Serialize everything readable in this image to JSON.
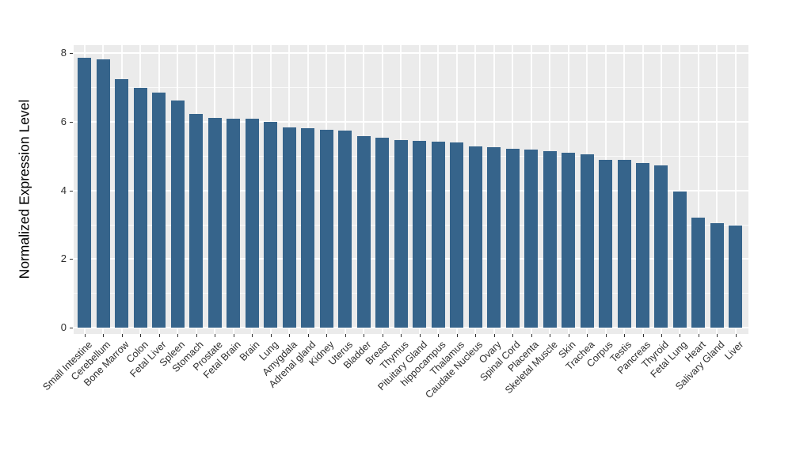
{
  "chart_data": {
    "type": "bar",
    "title": "",
    "xlabel": "",
    "ylabel": "Normalized Expression Level",
    "categories": [
      "Small Intestine",
      "Cerebellum",
      "Bone Marrow",
      "Colon",
      "Fetal Liver",
      "Spleen",
      "Stomach",
      "Prostate",
      "Fetal Brain",
      "Brain",
      "Lung",
      "Amygdala",
      "Adrenal gland",
      "Kidney",
      "Uterus",
      "Bladder",
      "Breast",
      "Thymus",
      "Pituitary Gland",
      "hippocampus",
      "Thalamus",
      "Caudate Nucleus",
      "Ovary",
      "Spinal Cord",
      "Placenta",
      "Skeletal Muscle",
      "Skin",
      "Trachea",
      "Corpus",
      "Testis",
      "Pancreas",
      "Thyroid",
      "Fetal Lung",
      "Heart",
      "Salivary Gland",
      "Liver"
    ],
    "values": [
      7.88,
      7.82,
      7.24,
      6.99,
      6.86,
      6.62,
      6.22,
      6.12,
      6.1,
      6.09,
      6.01,
      5.85,
      5.81,
      5.78,
      5.74,
      5.58,
      5.55,
      5.46,
      5.45,
      5.42,
      5.4,
      5.29,
      5.26,
      5.21,
      5.19,
      5.14,
      5.09,
      5.06,
      4.9,
      4.89,
      4.79,
      4.72,
      3.97,
      3.21,
      3.05,
      2.97
    ],
    "yticks": [
      0,
      2,
      4,
      6,
      8
    ],
    "yticks_minor": [
      1,
      3,
      5,
      7
    ],
    "ylim": [
      -0.35,
      8.42
    ],
    "grid": "white major and minor horizontal gridlines plus vertical gridlines at each category center, on gray panel",
    "legend": "none",
    "bar_orientation": "vertical",
    "x_label_rotation_deg": 45,
    "colors": {
      "bar_fill": "#36648B",
      "panel_background": "#EBEBEB",
      "gridline": "#FFFFFF",
      "axis_text": "#2e2e2e",
      "axis_title": "#000000",
      "tick_mark": "#333333",
      "page_background": "#FFFFFF"
    }
  }
}
